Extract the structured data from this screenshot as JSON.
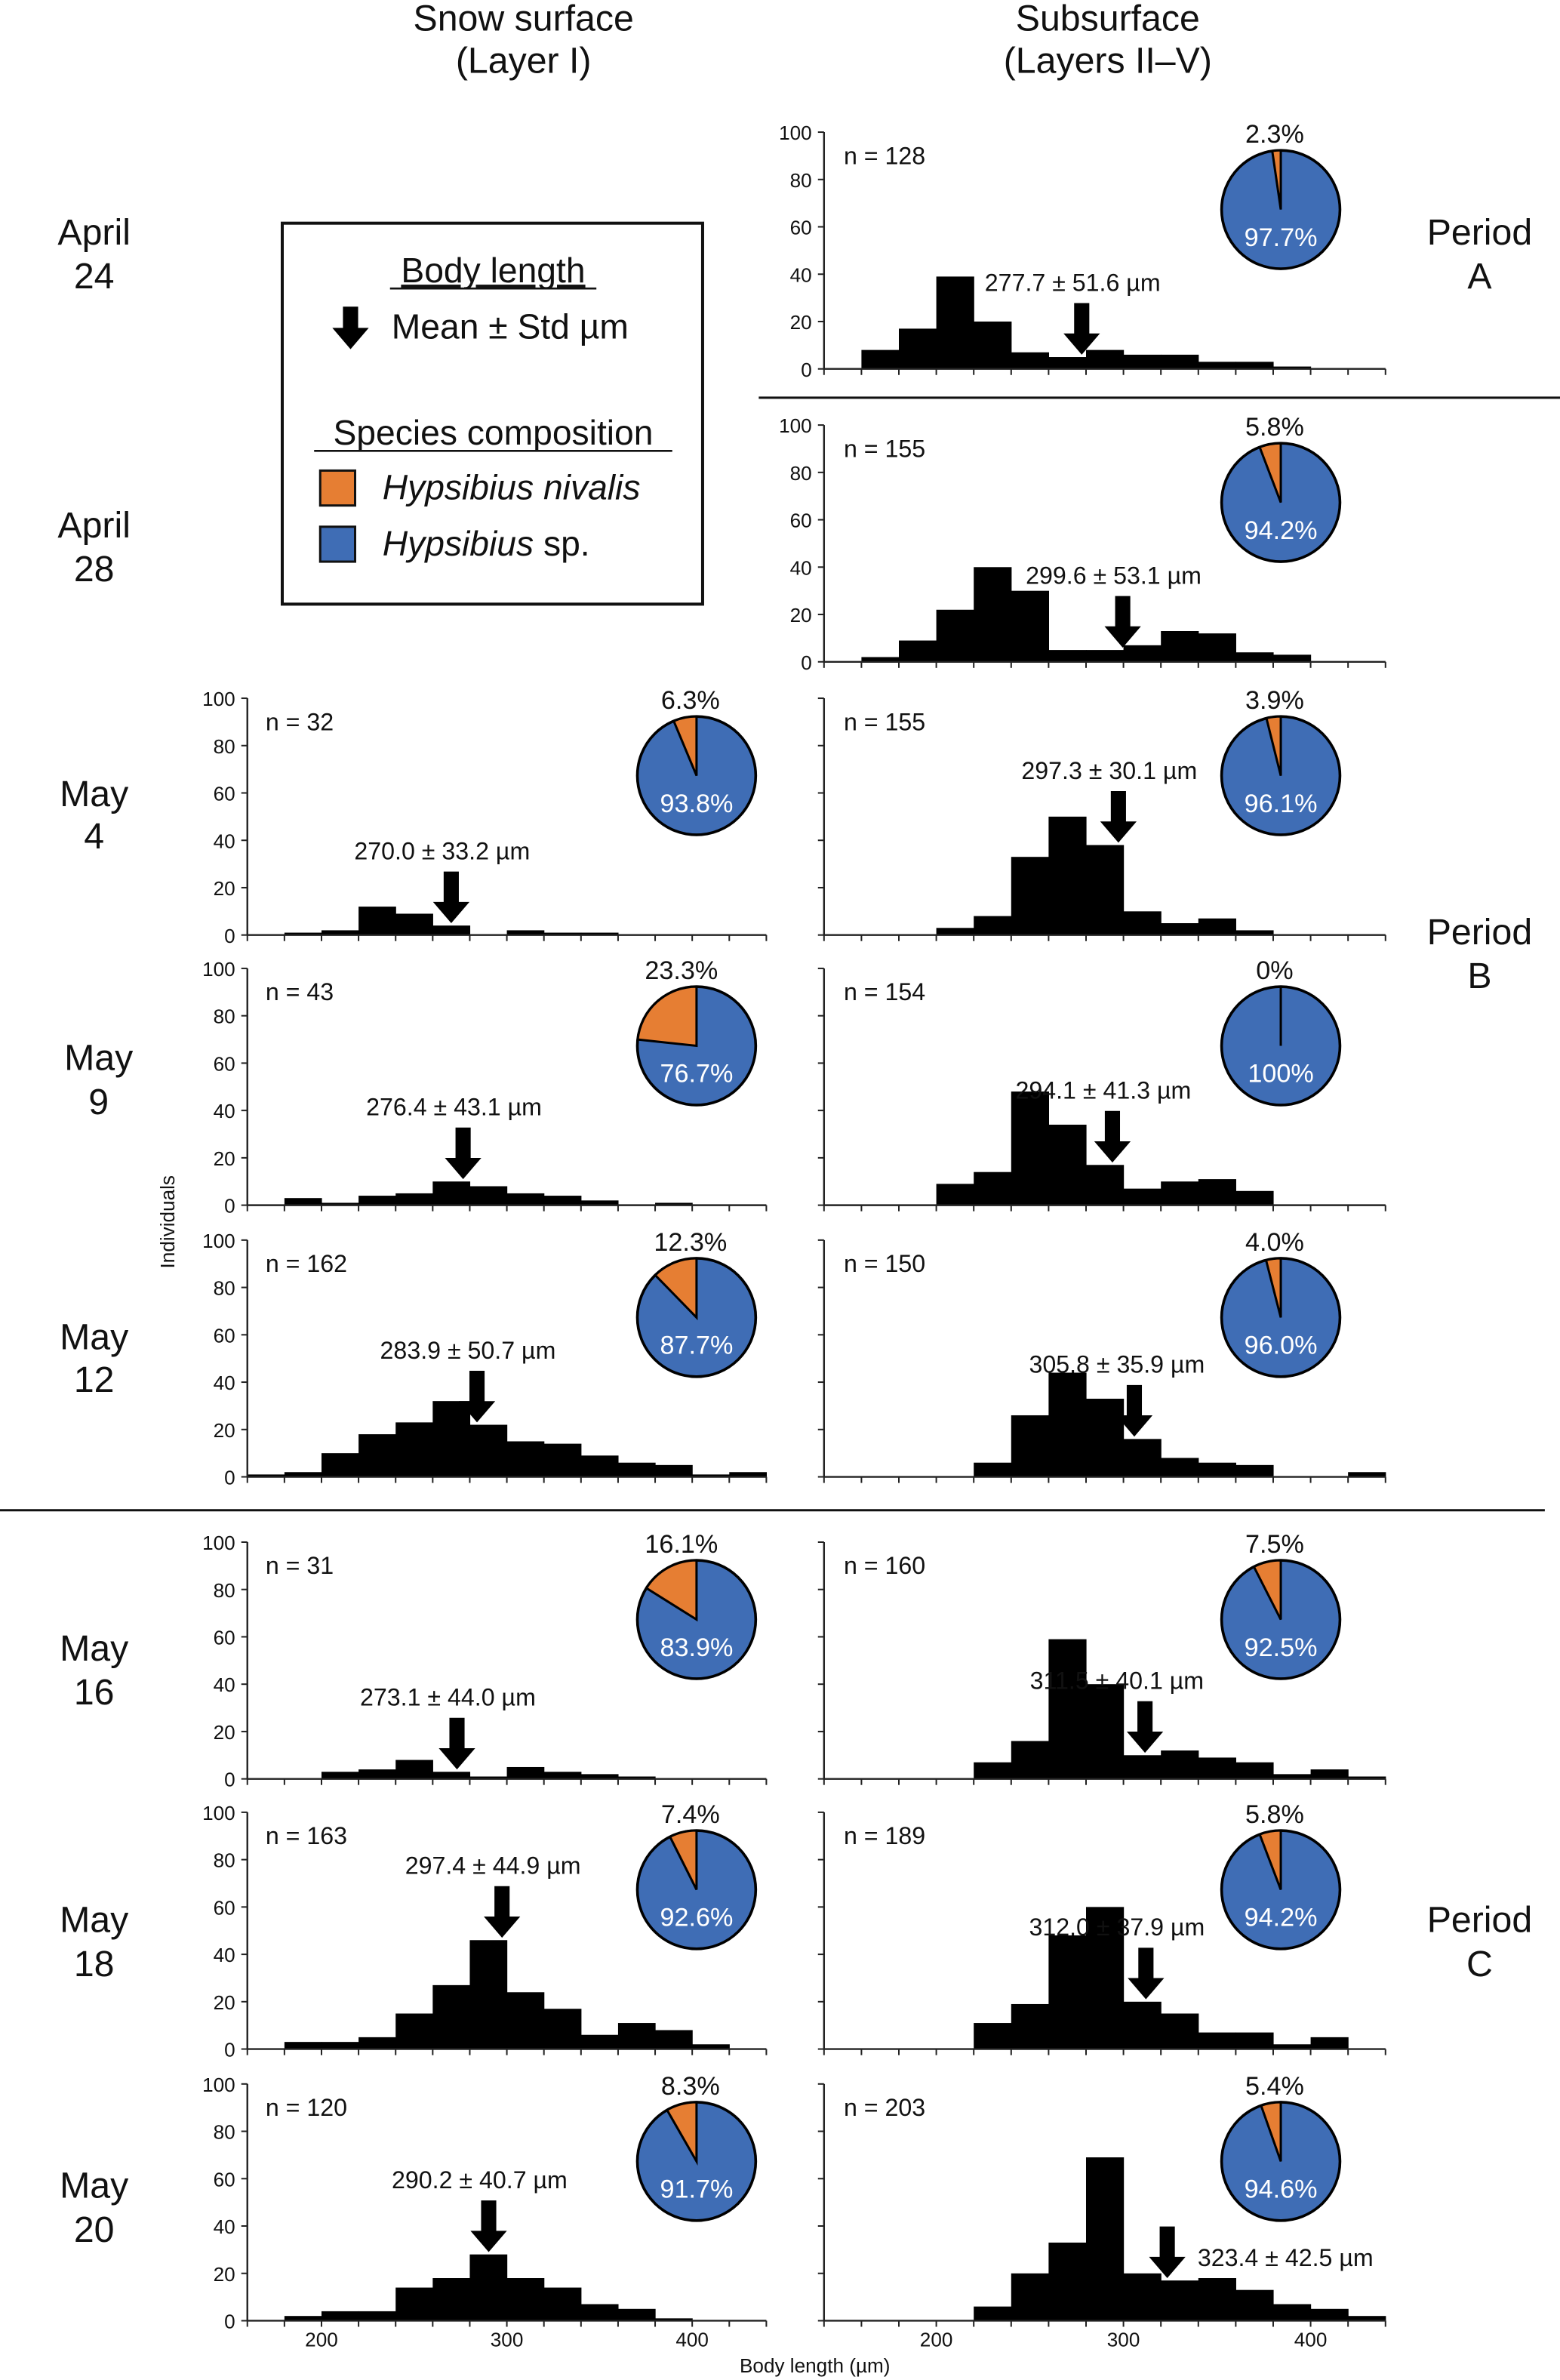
{
  "headers": {
    "snow": [
      "Snow surface",
      "(Layer I)"
    ],
    "sub": [
      "Subsurface",
      "(Layers II–V)"
    ]
  },
  "legend": {
    "body_title": "Body length",
    "arrow_label": "Mean ± Std µm",
    "species_title": "Species composition",
    "species": [
      {
        "genus": "Hypsibius",
        "epithet": " nivalis",
        "epithet_italic": true,
        "color": "#E67E33"
      },
      {
        "genus": "Hypsibius",
        "epithet": " sp.",
        "epithet_italic": false,
        "color": "#3F6DB5"
      }
    ]
  },
  "periods": [
    {
      "lines": [
        "Period",
        "A"
      ]
    },
    {
      "lines": [
        "Period",
        "B"
      ]
    },
    {
      "lines": [
        "Period",
        "C"
      ]
    }
  ],
  "chart_data": {
    "type": "bar",
    "subtype": "histogram-with-pie-insets",
    "xlabel": "Body length (µm)",
    "ylabel": "Individuals",
    "ylim": [
      0,
      100
    ],
    "yticks": [
      0,
      20,
      40,
      60,
      80,
      100
    ],
    "xticks": [
      200,
      300,
      400
    ],
    "bin_width": 20,
    "colors": {
      "bars": "#000000",
      "nivalis": "#E67E33",
      "sp": "#3F6DB5"
    },
    "rows": [
      {
        "date": [
          "April",
          "24"
        ],
        "snow": null,
        "sub": {
          "n": "n = 128",
          "mean": 277.7,
          "mean_label": "277.7 ± 51.6 µm",
          "bin_start": 140,
          "counts": [
            0,
            8,
            17,
            39,
            20,
            7,
            5,
            8,
            6,
            6,
            3,
            3,
            1,
            0,
            0
          ],
          "pie": {
            "nivalis": 2.3,
            "nivalis_label": "2.3%",
            "sp_label": "97.7%"
          }
        }
      },
      {
        "date": [
          "April",
          "28"
        ],
        "snow": null,
        "sub": {
          "n": "n = 155",
          "mean": 299.6,
          "mean_label": "299.6 ± 53.1 µm",
          "bin_start": 140,
          "counts": [
            0,
            2,
            9,
            22,
            40,
            30,
            5,
            5,
            7,
            13,
            12,
            4,
            3,
            0,
            0
          ],
          "pie": {
            "nivalis": 5.8,
            "nivalis_label": "5.8%",
            "sp_label": "94.2%"
          }
        }
      },
      {
        "date": [
          "May",
          "4"
        ],
        "snow": {
          "n": "n = 32",
          "mean": 270.0,
          "mean_label": "270.0 ± 33.2 µm",
          "bin_start": 160,
          "counts": [
            0,
            1,
            2,
            12,
            9,
            4,
            0,
            2,
            1,
            1,
            0,
            0,
            0,
            0
          ],
          "pie": {
            "nivalis": 6.3,
            "nivalis_label": "6.3%",
            "sp_label": "93.8%"
          }
        },
        "sub": {
          "n": "n = 155",
          "mean": 297.3,
          "mean_label": "297.3 ± 30.1 µm",
          "bin_start": 140,
          "counts": [
            0,
            0,
            0,
            3,
            8,
            33,
            50,
            38,
            10,
            5,
            7,
            2,
            0,
            0,
            0
          ],
          "pie": {
            "nivalis": 3.9,
            "nivalis_label": "3.9%",
            "sp_label": "96.1%"
          }
        }
      },
      {
        "date": [
          "May",
          "9"
        ],
        "snow": {
          "n": "n = 43",
          "mean": 276.4,
          "mean_label": "276.4 ± 43.1 µm",
          "bin_start": 160,
          "counts": [
            0,
            3,
            1,
            4,
            5,
            10,
            8,
            5,
            4,
            2,
            0,
            1,
            0,
            0
          ],
          "pie": {
            "nivalis": 23.3,
            "nivalis_label": "23.3%",
            "sp_label": "76.7%"
          }
        },
        "sub": {
          "n": "n = 154",
          "mean": 294.1,
          "mean_label": "294.1 ± 41.3 µm",
          "bin_start": 140,
          "counts": [
            0,
            0,
            0,
            9,
            14,
            48,
            34,
            17,
            7,
            10,
            11,
            6,
            0,
            0,
            0
          ],
          "pie": {
            "nivalis": 0,
            "nivalis_label": "0%",
            "sp_label": "100%"
          }
        }
      },
      {
        "date": [
          "May",
          "12"
        ],
        "snow": {
          "n": "n = 162",
          "mean": 283.9,
          "mean_label": "283.9 ± 50.7 µm",
          "bin_start": 160,
          "counts": [
            1,
            2,
            10,
            18,
            23,
            32,
            22,
            15,
            14,
            9,
            6,
            5,
            1,
            2
          ],
          "pie": {
            "nivalis": 12.3,
            "nivalis_label": "12.3%",
            "sp_label": "87.7%"
          }
        },
        "sub": {
          "n": "n = 150",
          "mean": 305.8,
          "mean_label": "305.8 ± 35.9 µm",
          "bin_start": 140,
          "counts": [
            0,
            0,
            0,
            0,
            6,
            26,
            44,
            33,
            16,
            8,
            6,
            5,
            0,
            0,
            2
          ],
          "pie": {
            "nivalis": 4.0,
            "nivalis_label": "4.0%",
            "sp_label": "96.0%"
          }
        }
      },
      {
        "date": [
          "May",
          "16"
        ],
        "snow": {
          "n": "n = 31",
          "mean": 273.1,
          "mean_label": "273.1 ± 44.0 µm",
          "bin_start": 160,
          "counts": [
            0,
            0,
            3,
            4,
            8,
            3,
            1,
            5,
            3,
            2,
            1,
            0,
            0,
            0
          ],
          "pie": {
            "nivalis": 16.1,
            "nivalis_label": "16.1%",
            "sp_label": "83.9%"
          }
        },
        "sub": {
          "n": "n = 160",
          "mean": 311.5,
          "mean_label": "311.5 ± 40.1 µm",
          "bin_start": 140,
          "counts": [
            0,
            0,
            0,
            0,
            7,
            16,
            59,
            40,
            10,
            12,
            9,
            7,
            2,
            4,
            1
          ],
          "pie": {
            "nivalis": 7.5,
            "nivalis_label": "7.5%",
            "sp_label": "92.5%"
          }
        }
      },
      {
        "date": [
          "May",
          "18"
        ],
        "snow": {
          "n": "n = 163",
          "mean": 297.4,
          "mean_label": "297.4 ± 44.9 µm",
          "bin_start": 160,
          "counts": [
            0,
            3,
            3,
            5,
            15,
            27,
            46,
            24,
            17,
            6,
            11,
            8,
            2,
            0
          ],
          "pie": {
            "nivalis": 7.4,
            "nivalis_label": "7.4%",
            "sp_label": "92.6%"
          }
        },
        "sub": {
          "n": "n = 189",
          "mean": 312.0,
          "mean_label": "312.0 ± 37.9 µm",
          "bin_start": 140,
          "counts": [
            0,
            0,
            0,
            0,
            11,
            19,
            48,
            60,
            20,
            15,
            7,
            7,
            2,
            5,
            0
          ],
          "pie": {
            "nivalis": 5.8,
            "nivalis_label": "5.8%",
            "sp_label": "94.2%"
          }
        }
      },
      {
        "date": [
          "May",
          "20"
        ],
        "snow": {
          "n": "n = 120",
          "mean": 290.2,
          "mean_label": "290.2 ± 40.7 µm",
          "bin_start": 160,
          "counts": [
            0,
            2,
            4,
            4,
            14,
            18,
            28,
            18,
            14,
            7,
            5,
            1,
            0,
            0
          ],
          "pie": {
            "nivalis": 8.3,
            "nivalis_label": "8.3%",
            "sp_label": "91.7%"
          }
        },
        "sub": {
          "n": "n = 203",
          "mean": 323.4,
          "mean_label": "323.4 ± 42.5 µm",
          "bin_start": 140,
          "counts": [
            0,
            0,
            0,
            0,
            6,
            20,
            33,
            69,
            20,
            17,
            18,
            13,
            7,
            5,
            2
          ],
          "pie": {
            "nivalis": 5.4,
            "nivalis_label": "5.4%",
            "sp_label": "94.6%"
          }
        }
      }
    ]
  }
}
